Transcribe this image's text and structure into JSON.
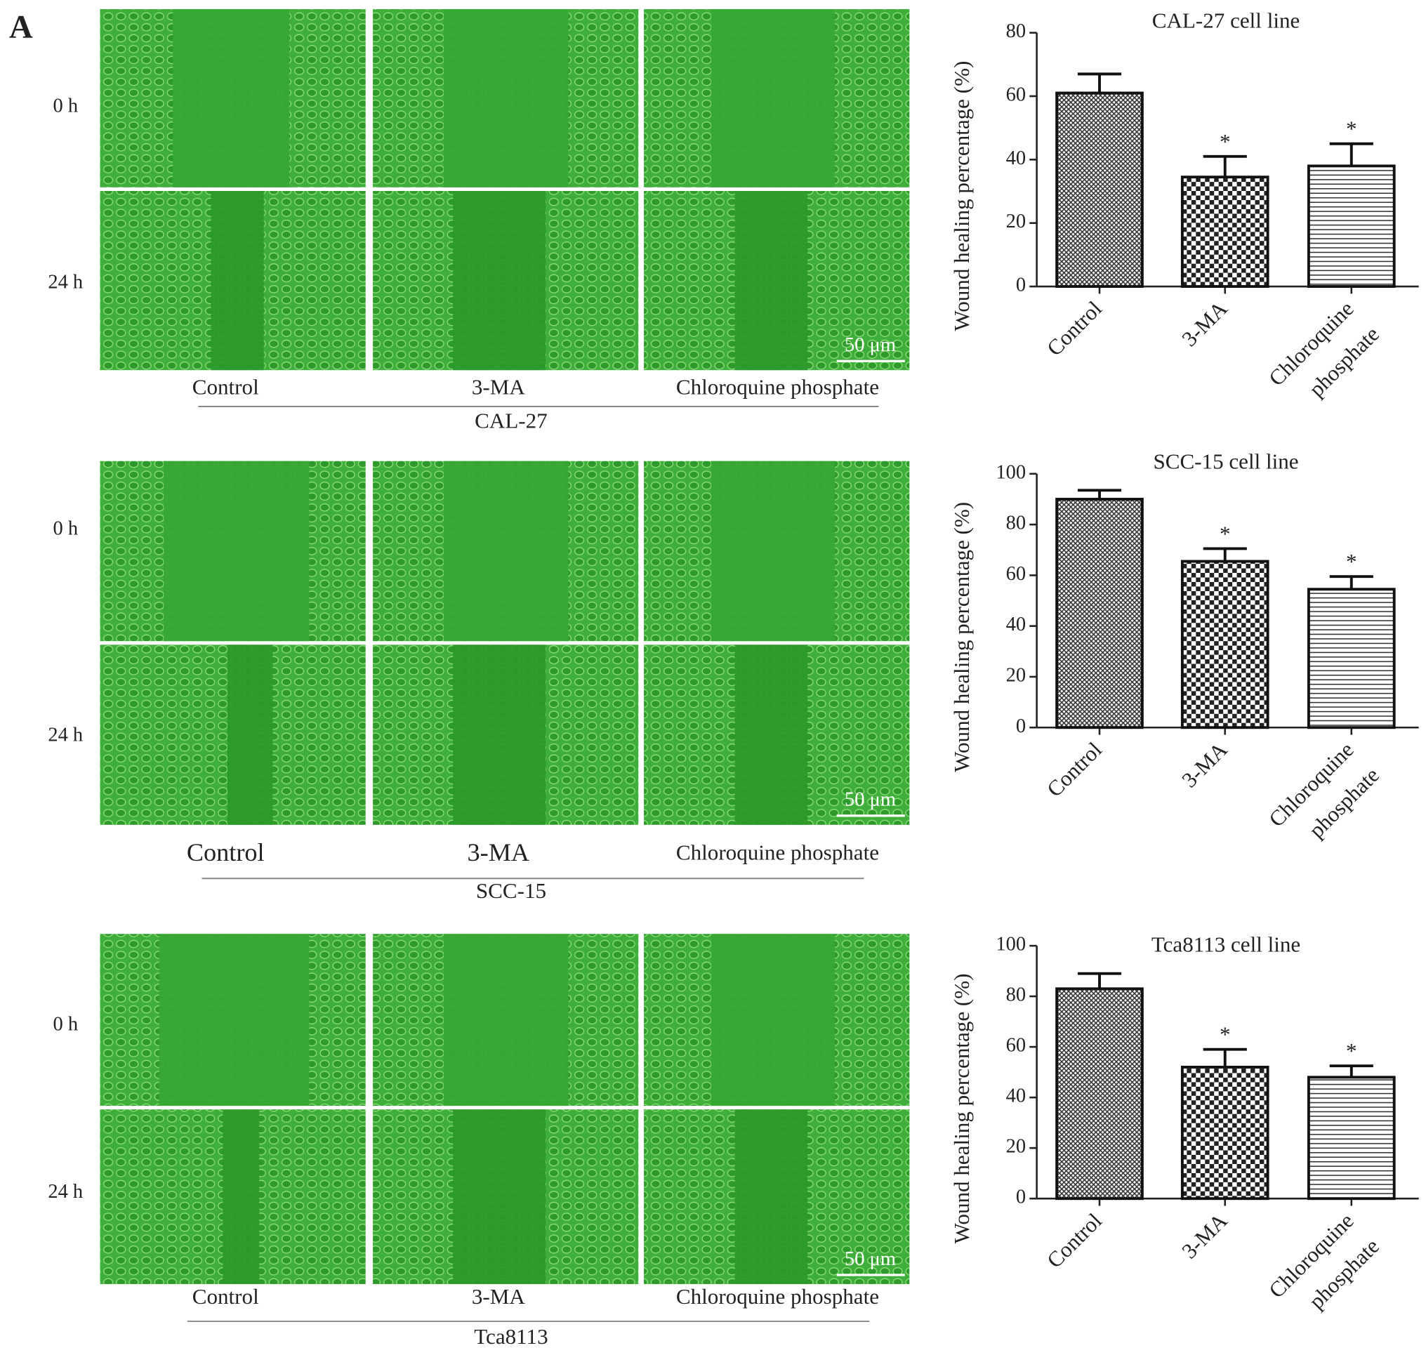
{
  "figure": {
    "panel_label": "A",
    "rows": [
      {
        "cell_line": "CAL-27",
        "time_labels": [
          "0 h",
          "24 h"
        ],
        "treatments": [
          "Control",
          "3-MA",
          "Chloroquine phosphate"
        ],
        "scale_bar": "50 μm"
      },
      {
        "cell_line": "SCC-15",
        "time_labels": [
          "0 h",
          "24 h"
        ],
        "treatments": [
          "Control",
          "3-MA",
          "Chloroquine phosphate"
        ],
        "scale_bar": "50 μm"
      },
      {
        "cell_line": "Tca8113",
        "time_labels": [
          "0 h",
          "24 h"
        ],
        "treatments": [
          "Control",
          "3-MA",
          "Chloroquine phosphate"
        ],
        "scale_bar": "50 μm"
      }
    ]
  },
  "chart_data": [
    {
      "type": "bar",
      "title": "CAL-27 cell line",
      "y_label": "Wound healing percentage (%)",
      "categories": [
        [
          "Control"
        ],
        [
          "3-MA"
        ],
        [
          "Chloroquine",
          "phosphate"
        ]
      ],
      "values": [
        61,
        34.5,
        38
      ],
      "errors": [
        6,
        6.5,
        7
      ],
      "significance": [
        null,
        "*",
        "*"
      ],
      "patterns": [
        "crosshatch",
        "checker",
        "hlines"
      ],
      "ylim": [
        0,
        80
      ],
      "yticks": [
        0,
        20,
        40,
        60,
        80
      ]
    },
    {
      "type": "bar",
      "title": "SCC-15 cell line",
      "y_label": "Wound healing percentage (%)",
      "categories": [
        [
          "Control"
        ],
        [
          "3-MA"
        ],
        [
          "Chloroquine",
          "phosphate"
        ]
      ],
      "values": [
        90,
        65.5,
        54.5
      ],
      "errors": [
        3.5,
        5,
        5
      ],
      "significance": [
        null,
        "*",
        "*"
      ],
      "patterns": [
        "crosshatch",
        "checker",
        "hlines"
      ],
      "ylim": [
        0,
        100
      ],
      "yticks": [
        0,
        20,
        40,
        60,
        80,
        100
      ]
    },
    {
      "type": "bar",
      "title": "Tca8113 cell line",
      "y_label": "Wound healing percentage (%)",
      "categories": [
        [
          "Control"
        ],
        [
          "3-MA"
        ],
        [
          "Chloroquine",
          "phosphate"
        ]
      ],
      "values": [
        83,
        52,
        48
      ],
      "errors": [
        6,
        7,
        4.5
      ],
      "significance": [
        null,
        "*",
        "*"
      ],
      "patterns": [
        "crosshatch",
        "checker",
        "hlines"
      ],
      "ylim": [
        0,
        100
      ],
      "yticks": [
        0,
        20,
        40,
        60,
        80,
        100
      ]
    }
  ]
}
